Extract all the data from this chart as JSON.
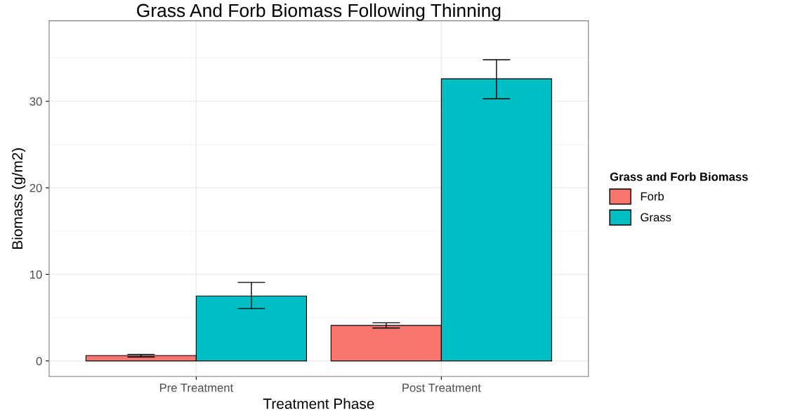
{
  "chart_data": {
    "type": "bar",
    "title": "Grass And Forb Biomass Following Thinning",
    "xlabel": "Treatment Phase",
    "ylabel": "Biomass (g/m2)",
    "legend_title": "Grass and Forb Biomass",
    "categories": [
      "Pre Treatment",
      "Post Treatment"
    ],
    "series": [
      {
        "name": "Forb",
        "color": "#f8766d",
        "values": [
          0.62,
          4.1
        ],
        "errors": [
          [
            0.45,
            0.75
          ],
          [
            3.8,
            4.4
          ]
        ]
      },
      {
        "name": "Grass",
        "color": "#00bfc4",
        "values": [
          7.5,
          32.6
        ],
        "errors": [
          [
            6.05,
            9.07
          ],
          [
            30.3,
            34.8
          ]
        ]
      }
    ],
    "ylim": [
      -1.8,
      39.3
    ],
    "yticks": [
      0,
      10,
      20,
      30
    ],
    "grid": true,
    "legend": "right"
  }
}
